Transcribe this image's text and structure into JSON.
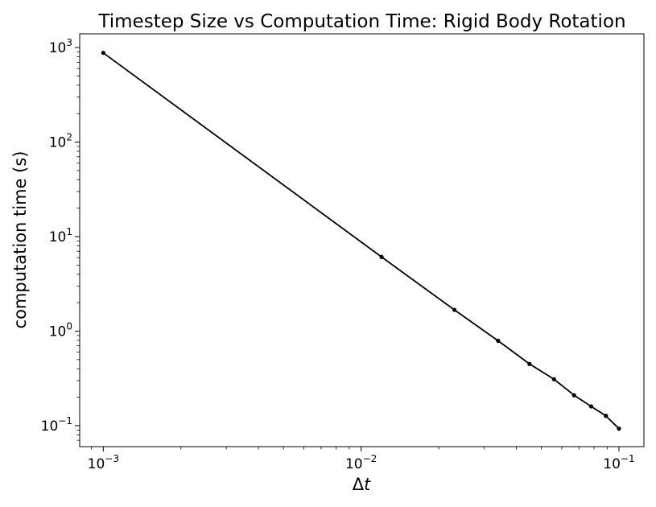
{
  "chart_data": {
    "type": "line",
    "title": "Timestep Size vs Computation Time: Rigid Body Rotation",
    "xlabel_main": "Δ",
    "xlabel_var": "t",
    "ylabel": "computation time (s)",
    "xscale": "log",
    "yscale": "log",
    "xlim": [
      0.00081,
      0.125
    ],
    "ylim": [
      0.06,
      1400
    ],
    "grid": false,
    "x_ticks": [
      {
        "value": 0.001,
        "base": "10",
        "exp": "−3"
      },
      {
        "value": 0.01,
        "base": "10",
        "exp": "−2"
      },
      {
        "value": 0.1,
        "base": "10",
        "exp": "−1"
      }
    ],
    "y_ticks": [
      {
        "value": 0.1,
        "base": "10",
        "exp": "−1"
      },
      {
        "value": 1,
        "base": "10",
        "exp": "0"
      },
      {
        "value": 10,
        "base": "10",
        "exp": "1"
      },
      {
        "value": 100,
        "base": "10",
        "exp": "2"
      },
      {
        "value": 1000,
        "base": "10",
        "exp": "3"
      }
    ],
    "series": [
      {
        "color": "#000000",
        "marker": "circle",
        "x": [
          0.001,
          0.012,
          0.023,
          0.034,
          0.045,
          0.056,
          0.067,
          0.078,
          0.089,
          0.1
        ],
        "y": [
          880,
          6.1,
          1.68,
          0.79,
          0.45,
          0.31,
          0.21,
          0.16,
          0.127,
          0.093
        ]
      }
    ]
  }
}
